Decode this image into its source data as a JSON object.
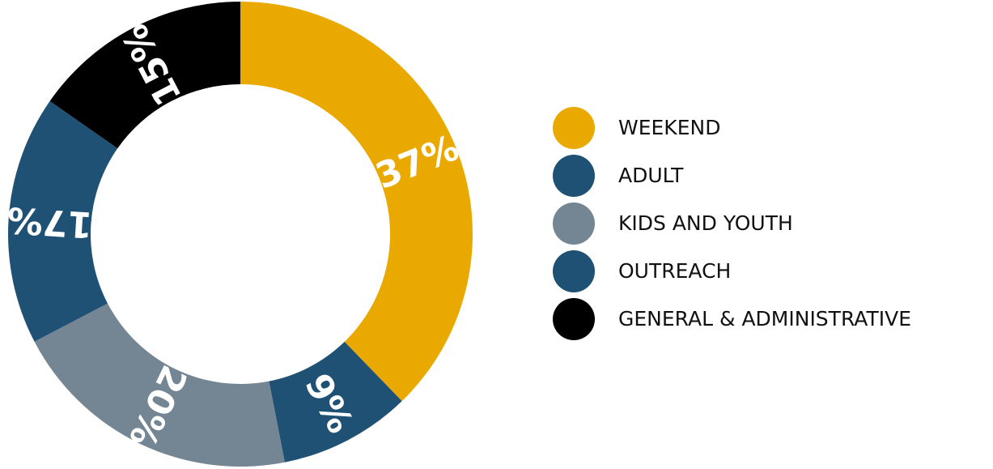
{
  "chart_data": {
    "type": "pie",
    "donut": true,
    "title": "",
    "legend_position": "right",
    "slices": [
      {
        "name": "WEEKEND",
        "value": 37,
        "label": "37%",
        "color": "#EAA900"
      },
      {
        "name": "ADULT",
        "value": 9,
        "label": "9%",
        "color": "#1F5174"
      },
      {
        "name": "KIDS AND YOUTH",
        "value": 20,
        "label": "20%",
        "color": "#748593"
      },
      {
        "name": "OUTREACH",
        "value": 17,
        "label": "17%",
        "color": "#1F5174"
      },
      {
        "name": "GENERAL & ADMINISTRATIVE",
        "value": 15,
        "label": "15%",
        "color": "#000000"
      }
    ]
  }
}
